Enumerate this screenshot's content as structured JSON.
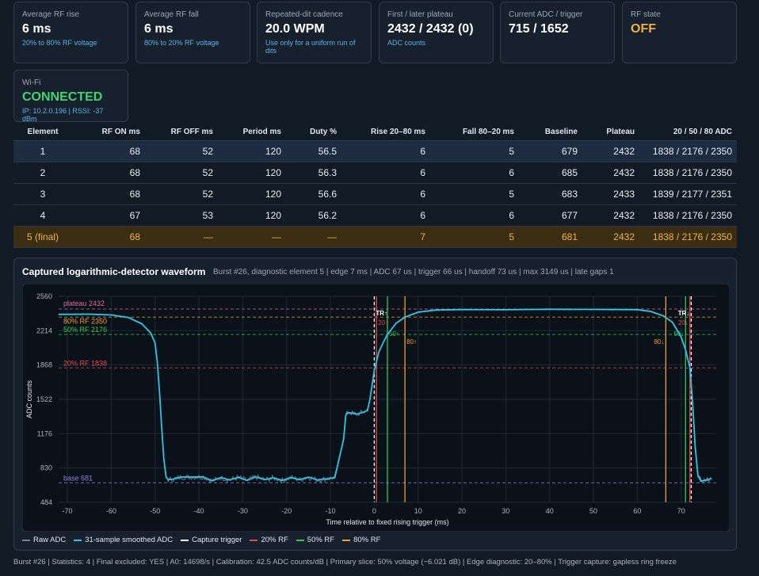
{
  "cards": [
    {
      "label": "Average RF rise",
      "value": "6 ms",
      "sub": "20% to 80% RF voltage"
    },
    {
      "label": "Average RF fall",
      "value": "6 ms",
      "sub": "80% to 20% RF voltage"
    },
    {
      "label": "Repeated-dit cadence",
      "value": "20.0 WPM",
      "sub": "Use only for a uniform run of dits"
    },
    {
      "label": "First / later plateau",
      "value": "2432 / 2432 (0)",
      "sub": "ADC counts"
    },
    {
      "label": "Current ADC / trigger",
      "value": "715 / 1652",
      "sub": ""
    },
    {
      "label": "RF state",
      "value": "OFF",
      "sub": ""
    }
  ],
  "wifi": {
    "label": "Wi-Fi",
    "value": "CONNECTED",
    "sub": "IP: 10.2.0.196 | RSSI: -37 dBm"
  },
  "table": {
    "headers": [
      "Element",
      "RF ON ms",
      "RF OFF ms",
      "Period ms",
      "Duty %",
      "Rise 20–80 ms",
      "Fall 80–20 ms",
      "Baseline",
      "Plateau",
      "20 / 50 / 80 ADC"
    ],
    "rows": [
      [
        "1",
        "68",
        "52",
        "120",
        "56.5",
        "6",
        "5",
        "679",
        "2432",
        "1838 / 2176 / 2350"
      ],
      [
        "2",
        "68",
        "52",
        "120",
        "56.3",
        "6",
        "6",
        "685",
        "2432",
        "1838 / 2176 / 2350"
      ],
      [
        "3",
        "68",
        "52",
        "120",
        "56.6",
        "6",
        "5",
        "683",
        "2433",
        "1839 / 2177 / 2351"
      ],
      [
        "4",
        "67",
        "53",
        "120",
        "56.2",
        "6",
        "6",
        "677",
        "2432",
        "1838 / 2176 / 2350"
      ],
      [
        "5 (final)",
        "68",
        "—",
        "—",
        "—",
        "7",
        "5",
        "681",
        "2432",
        "1838 / 2176 / 2350"
      ]
    ]
  },
  "waveform": {
    "title": "Captured logarithmic-detector waveform",
    "meta": "Burst #26, diagnostic element 5 | edge 7 ms | ADC 67 us | trigger 66 us | handoff 73 us | max 3149 us | late gaps 1",
    "legend": [
      {
        "name": "Raw ADC",
        "color": "#7a8591"
      },
      {
        "name": "31-sample smoothed ADC",
        "color": "#2ec4e6"
      },
      {
        "name": "Capture trigger",
        "color": "#ffffff"
      },
      {
        "name": "20% RF",
        "color": "#e24a4a"
      },
      {
        "name": "50% RF",
        "color": "#2ecc55"
      },
      {
        "name": "80% RF",
        "color": "#f0a030"
      }
    ]
  },
  "chart_data": {
    "type": "line",
    "xlabel": "Time relative to fixed rising trigger (ms)",
    "ylabel": "ADC counts",
    "xlim": [
      -72,
      78
    ],
    "ylim": [
      484,
      2560
    ],
    "xticks": [
      -70,
      -60,
      -50,
      -40,
      -30,
      -20,
      -10,
      0,
      10,
      20,
      30,
      40,
      50,
      60,
      70
    ],
    "yticks": [
      484,
      830,
      1176,
      1522,
      1868,
      2214,
      2560
    ],
    "hlines": [
      {
        "label": "plateau 2432",
        "value": 2432,
        "color": "#e066a0"
      },
      {
        "label": "80% RF 2350",
        "value": 2350,
        "color": "#f0a030"
      },
      {
        "label": "50% RF 2176",
        "value": 2176,
        "color": "#2ecc55"
      },
      {
        "label": "20% RF 1838",
        "value": 1838,
        "color": "#e24a4a"
      },
      {
        "label": "base 681",
        "value": 681,
        "color": "#8f7fe0"
      }
    ],
    "vlines": [
      {
        "x": 0,
        "color": "#ffffff",
        "dash": true,
        "label": "TR↑"
      },
      {
        "x": 0.5,
        "color": "#e24a4a",
        "label": "20↑"
      },
      {
        "x": 3,
        "color": "#2ecc55",
        "label": "50↑"
      },
      {
        "x": 7,
        "color": "#f0a030",
        "label": "80↑"
      },
      {
        "x": 66.5,
        "color": "#f0a030",
        "label": "80↓"
      },
      {
        "x": 71,
        "color": "#2ecc55",
        "label": "50↓"
      },
      {
        "x": 72,
        "color": "#e24a4a",
        "label": "20↓"
      },
      {
        "x": 72.3,
        "color": "#ffffff",
        "dash": true,
        "label": "TR↓"
      }
    ],
    "series": [
      {
        "name": "31-sample smoothed ADC",
        "points": [
          [
            -72,
            2378
          ],
          [
            -65,
            2380
          ],
          [
            -60,
            2372
          ],
          [
            -56,
            2345
          ],
          [
            -53,
            2282
          ],
          [
            -51,
            2190
          ],
          [
            -50,
            2090
          ],
          [
            -49.5,
            1900
          ],
          [
            -49,
            1600
          ],
          [
            -48.5,
            1250
          ],
          [
            -48,
            920
          ],
          [
            -47.5,
            740
          ],
          [
            -47,
            712
          ],
          [
            -46,
            716
          ],
          [
            -44,
            738
          ],
          [
            -39,
            740
          ],
          [
            -37,
            700
          ],
          [
            -35,
            733
          ],
          [
            -33,
            710
          ],
          [
            -31,
            735
          ],
          [
            -29,
            705
          ],
          [
            -27,
            740
          ],
          [
            -25,
            712
          ],
          [
            -23,
            730
          ],
          [
            -21,
            705
          ],
          [
            -19,
            733
          ],
          [
            -17,
            712
          ],
          [
            -15,
            738
          ],
          [
            -13,
            710
          ],
          [
            -11,
            720
          ],
          [
            -9,
            733
          ],
          [
            -7,
            1120
          ],
          [
            -6.5,
            1360
          ],
          [
            -6,
            1390
          ],
          [
            -4,
            1372
          ],
          [
            -2,
            1400
          ],
          [
            -1.5,
            1420
          ],
          [
            -1,
            1520
          ],
          [
            0,
            1810
          ],
          [
            0.5,
            1900
          ],
          [
            1,
            1995
          ],
          [
            2,
            2090
          ],
          [
            3,
            2176
          ],
          [
            5,
            2290
          ],
          [
            7,
            2350
          ],
          [
            10,
            2400
          ],
          [
            14,
            2422
          ],
          [
            20,
            2427
          ],
          [
            30,
            2425
          ],
          [
            40,
            2430
          ],
          [
            50,
            2428
          ],
          [
            60,
            2426
          ],
          [
            63,
            2408
          ],
          [
            66,
            2362
          ],
          [
            68,
            2298
          ],
          [
            70,
            2150
          ],
          [
            71,
            2020
          ],
          [
            72,
            1840
          ],
          [
            72.6,
            1500
          ],
          [
            73.2,
            1050
          ],
          [
            73.8,
            760
          ],
          [
            74.5,
            698
          ],
          [
            76,
            710
          ],
          [
            77,
            725
          ]
        ]
      }
    ]
  },
  "footer": "Burst #26 | Statistics: 4 | Final excluded: YES | A0: 14698/s | Calibration: 42.5 ADC counts/dB | Primary slice: 50% voltage (−6.021 dB) | Edge diagnostic: 20–80% | Trigger capture: gapless ring freeze"
}
